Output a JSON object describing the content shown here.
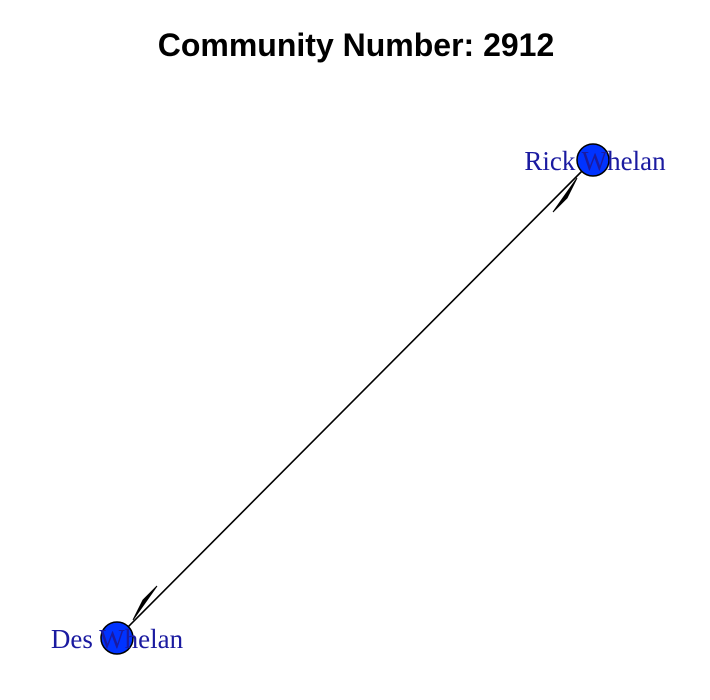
{
  "title": "Community Number:  2912",
  "colors": {
    "node_fill": "#0033ff",
    "node_stroke": "#000000",
    "label": "#1a1aa0",
    "edge": "#000000",
    "background": "#ffffff"
  },
  "nodes": [
    {
      "id": "rick",
      "label": "Rick Whelan"
    },
    {
      "id": "des",
      "label": "Des Whelan"
    }
  ],
  "edges": [
    {
      "from": "rick",
      "to": "des",
      "arrow_at": "both"
    }
  ]
}
